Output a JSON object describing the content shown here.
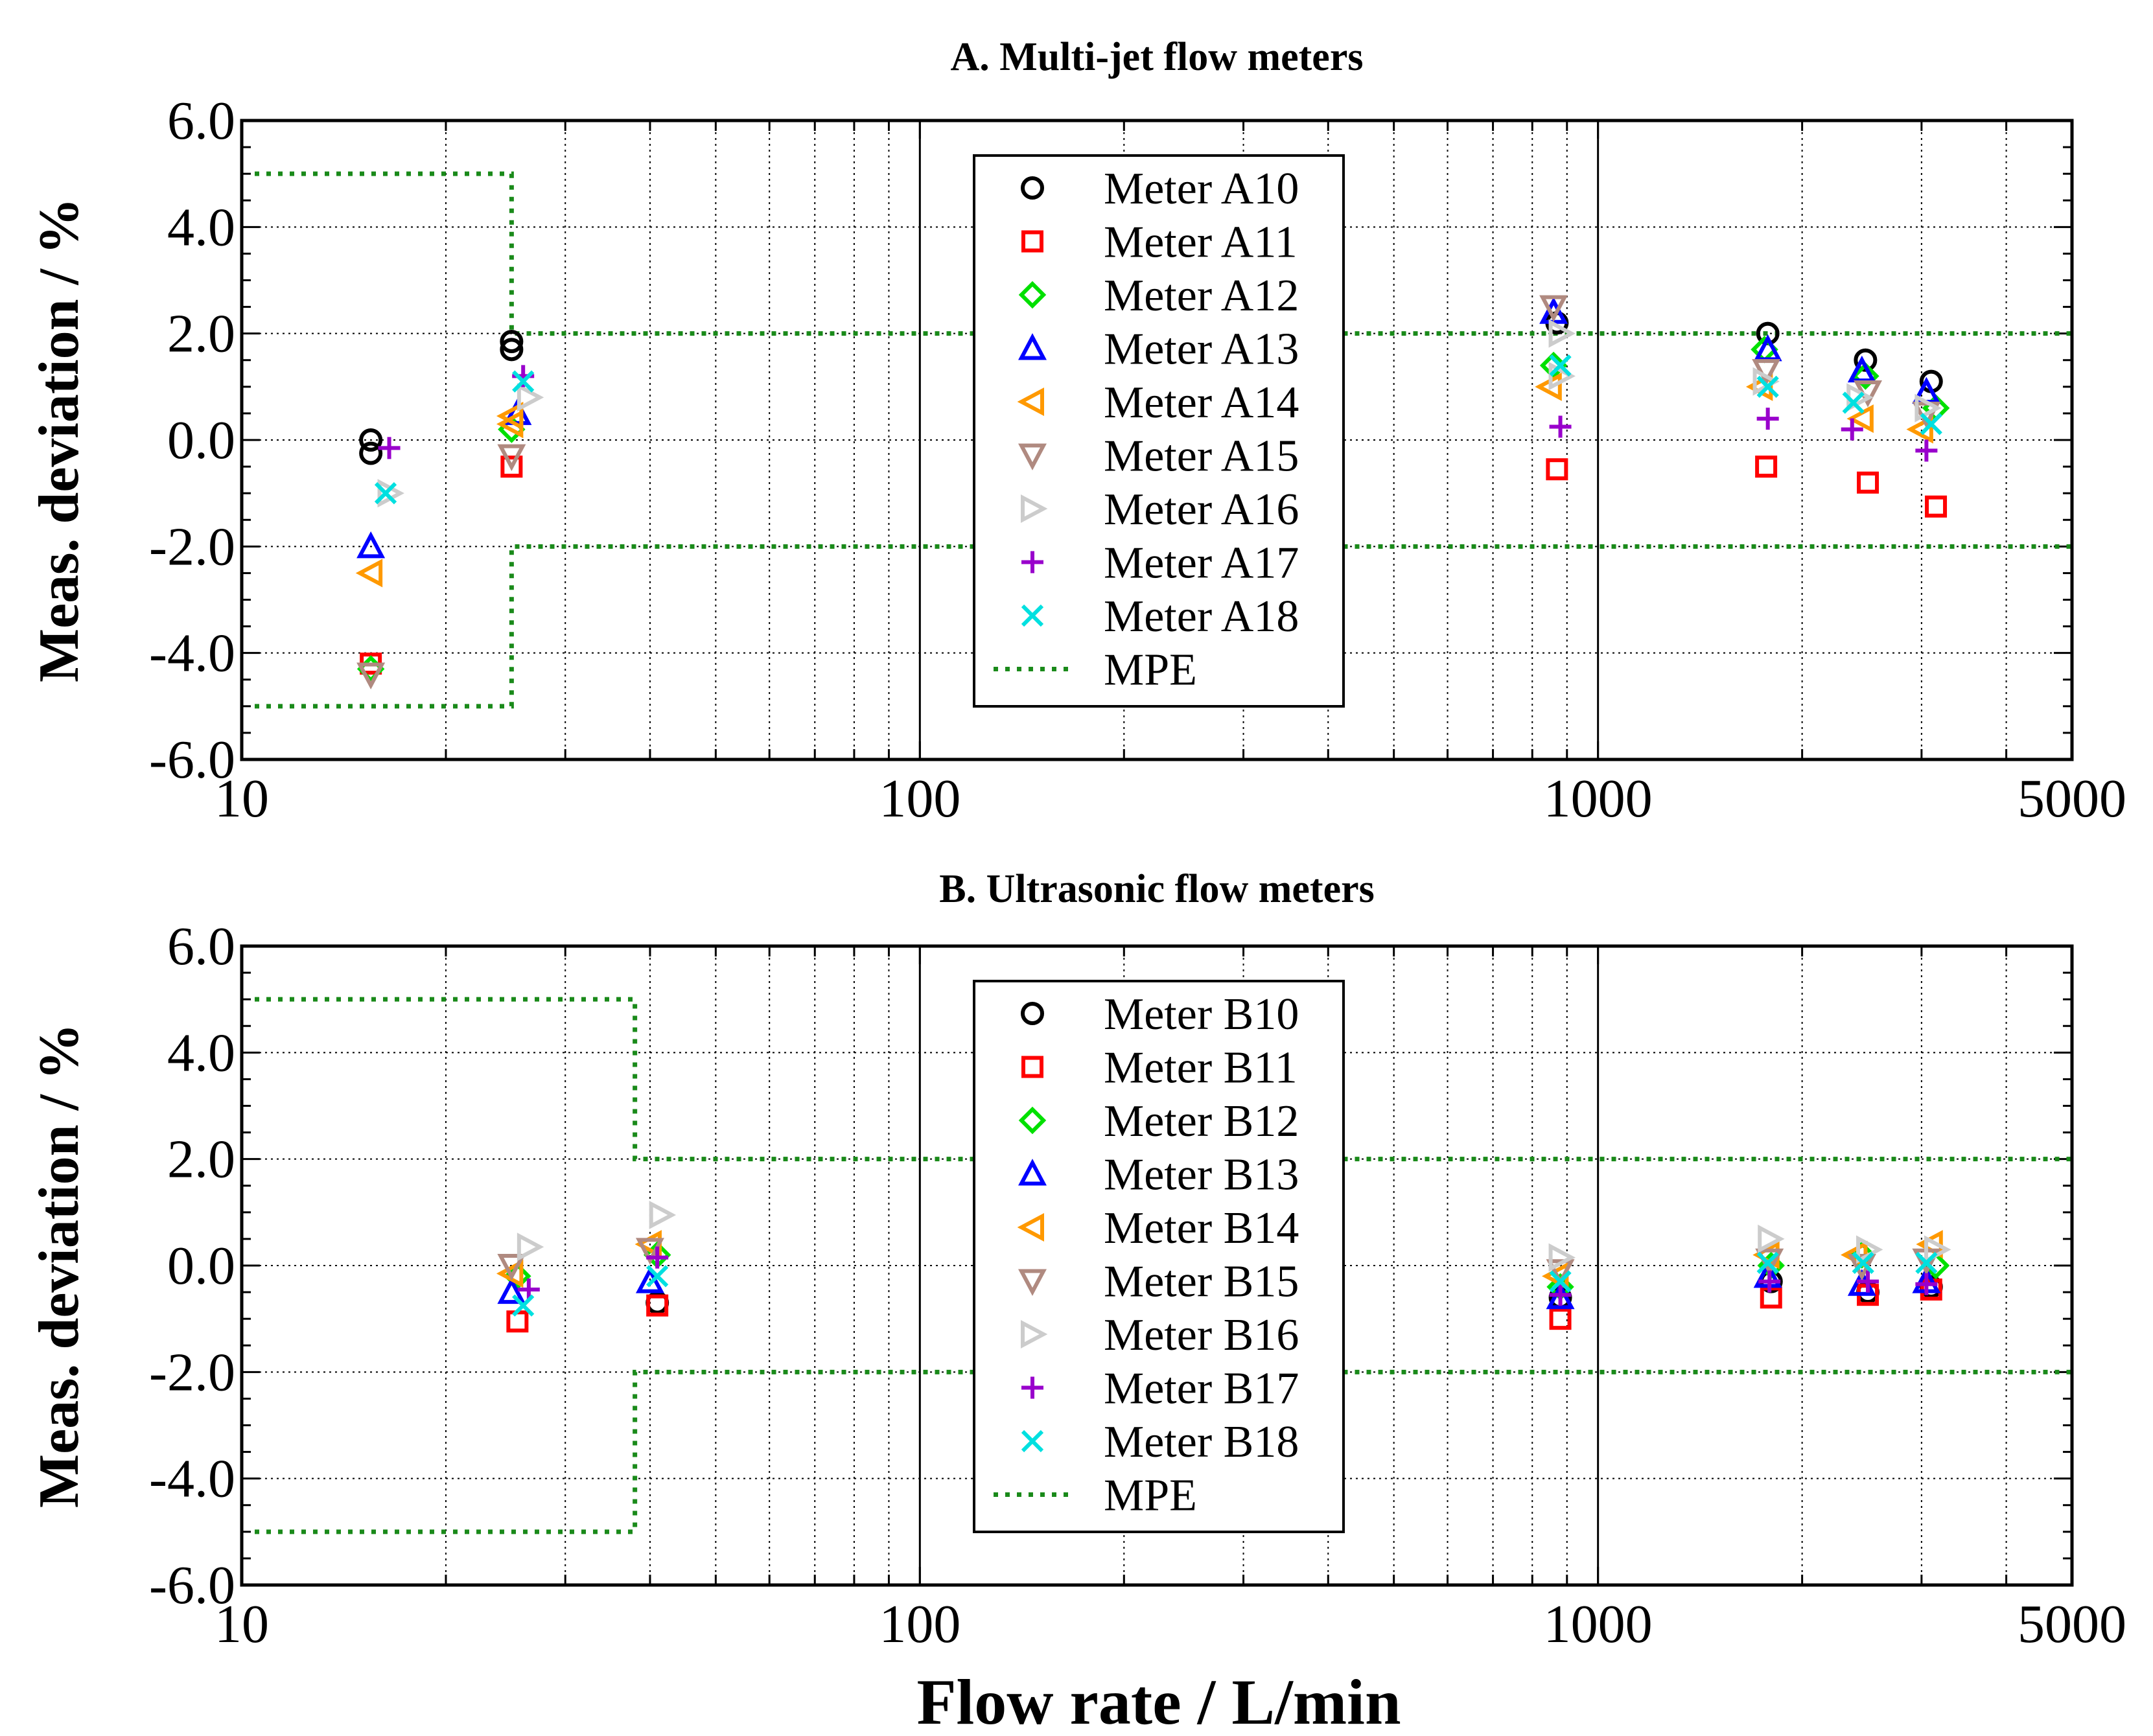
{
  "chart_data": [
    {
      "type": "scatter",
      "title": "A. Multi-jet flow meters",
      "ylabel": "Meas. deviation / %",
      "xlabel": "",
      "xscale": "log",
      "xlim": [
        10,
        5000
      ],
      "ylim": [
        -6.0,
        6.0
      ],
      "x_ticks": [
        "10",
        "100",
        "1000",
        "5000"
      ],
      "y_ticks": [
        "6.0",
        "4.0",
        "2.0",
        "0.0",
        "-2.0",
        "-4.0",
        "-6.0"
      ],
      "grid": true,
      "legend_position": "top-center",
      "mpe": {
        "name": "MPE",
        "color": "#1a8a1a",
        "transition_flow": 25,
        "low_limits": [
          -5.0,
          5.0
        ],
        "high_limits": [
          -2.0,
          2.0
        ]
      },
      "series": [
        {
          "name": "Meter A10",
          "marker": "circle",
          "color": "#000000",
          "points": [
            [
              15.5,
              0.0
            ],
            [
              15.5,
              -0.25
            ],
            [
              25,
              1.7
            ],
            [
              25,
              1.85
            ],
            [
              870,
              2.2
            ],
            [
              1780,
              2.0
            ],
            [
              2480,
              1.5
            ],
            [
              3100,
              1.1
            ]
          ]
        },
        {
          "name": "Meter A11",
          "marker": "square",
          "color": "#ff0000",
          "points": [
            [
              15.5,
              -4.2
            ],
            [
              25,
              -0.5
            ],
            [
              870,
              -0.55
            ],
            [
              1770,
              -0.5
            ],
            [
              2500,
              -0.8
            ],
            [
              3150,
              -1.25
            ]
          ]
        },
        {
          "name": "Meter A12",
          "marker": "diamond",
          "color": "#00e000",
          "points": [
            [
              15.5,
              -4.3
            ],
            [
              25,
              0.2
            ],
            [
              860,
              1.4
            ],
            [
              1760,
              1.7
            ],
            [
              2480,
              1.2
            ],
            [
              3150,
              0.6
            ]
          ]
        },
        {
          "name": "Meter A13",
          "marker": "triangle-up",
          "color": "#0000ff",
          "points": [
            [
              15.5,
              -2.0
            ],
            [
              25.5,
              0.5
            ],
            [
              860,
              2.4
            ],
            [
              1780,
              1.7
            ],
            [
              2450,
              1.3
            ],
            [
              3050,
              0.9
            ]
          ]
        },
        {
          "name": "Meter A14",
          "marker": "triangle-left",
          "color": "#ff9900",
          "points": [
            [
              15.5,
              -2.5
            ],
            [
              25,
              0.3
            ],
            [
              25,
              0.45
            ],
            [
              850,
              1.0
            ],
            [
              1740,
              1.0
            ],
            [
              2450,
              0.4
            ],
            [
              3000,
              0.2
            ]
          ]
        },
        {
          "name": "Meter A15",
          "marker": "triangle-down",
          "color": "#b08a80",
          "points": [
            [
              15.5,
              -4.4
            ],
            [
              25,
              -0.3
            ],
            [
              860,
              2.5
            ],
            [
              1770,
              1.3
            ],
            [
              2500,
              0.9
            ],
            [
              3050,
              0.5
            ]
          ]
        },
        {
          "name": "Meter A16",
          "marker": "triangle-right",
          "color": "#cccccc",
          "points": [
            [
              16.5,
              -1.0
            ],
            [
              26.5,
              0.8
            ],
            [
              880,
              2.0
            ],
            [
              880,
              1.2
            ],
            [
              1760,
              1.1
            ],
            [
              2420,
              0.8
            ],
            [
              3050,
              0.6
            ]
          ]
        },
        {
          "name": "Meter A17",
          "marker": "plus",
          "color": "#9900cc",
          "points": [
            [
              16.5,
              -0.15
            ],
            [
              26,
              1.2
            ],
            [
              880,
              0.25
            ],
            [
              1780,
              0.4
            ],
            [
              2370,
              0.2
            ],
            [
              3050,
              -0.2
            ]
          ]
        },
        {
          "name": "Meter A18",
          "marker": "x",
          "color": "#00e0e0",
          "points": [
            [
              16.3,
              -1.0
            ],
            [
              26,
              1.1
            ],
            [
              880,
              1.4
            ],
            [
              1780,
              1.0
            ],
            [
              2380,
              0.7
            ],
            [
              3100,
              0.3
            ]
          ]
        }
      ]
    },
    {
      "type": "scatter",
      "title": "B. Ultrasonic flow meters",
      "ylabel": "Meas. deviation / %",
      "xlabel": "Flow rate / L/min",
      "xscale": "log",
      "xlim": [
        10,
        5000
      ],
      "ylim": [
        -6.0,
        6.0
      ],
      "x_ticks": [
        "10",
        "100",
        "1000",
        "5000"
      ],
      "y_ticks": [
        "6.0",
        "4.0",
        "2.0",
        "0.0",
        "-2.0",
        "-4.0",
        "-6.0"
      ],
      "grid": true,
      "legend_position": "top-center",
      "mpe": {
        "name": "MPE",
        "color": "#1a8a1a",
        "transition_flow": 38,
        "low_limits": [
          -5.0,
          5.0
        ],
        "high_limits": [
          -2.0,
          2.0
        ]
      },
      "series": [
        {
          "name": "Meter B10",
          "marker": "circle",
          "color": "#000000",
          "points": [
            [
              41,
              -0.7
            ],
            [
              880,
              -0.6
            ],
            [
              1800,
              -0.3
            ],
            [
              2500,
              -0.5
            ],
            [
              3100,
              -0.4
            ]
          ]
        },
        {
          "name": "Meter B11",
          "marker": "square",
          "color": "#ff0000",
          "points": [
            [
              25.5,
              -1.05
            ],
            [
              41,
              -0.75
            ],
            [
              880,
              -1.0
            ],
            [
              1800,
              -0.6
            ],
            [
              2500,
              -0.55
            ],
            [
              3100,
              -0.45
            ]
          ]
        },
        {
          "name": "Meter B12",
          "marker": "diamond",
          "color": "#00e000",
          "points": [
            [
              25.5,
              -0.2
            ],
            [
              41,
              0.2
            ],
            [
              880,
              -0.4
            ],
            [
              1800,
              0.0
            ],
            [
              2450,
              0.2
            ],
            [
              3150,
              0.0
            ]
          ]
        },
        {
          "name": "Meter B13",
          "marker": "triangle-up",
          "color": "#0000ff",
          "points": [
            [
              25,
              -0.5
            ],
            [
              40,
              -0.3
            ],
            [
              880,
              -0.6
            ],
            [
              1780,
              -0.2
            ],
            [
              2450,
              -0.35
            ],
            [
              3050,
              -0.3
            ]
          ]
        },
        {
          "name": "Meter B14",
          "marker": "triangle-left",
          "color": "#ff9900",
          "points": [
            [
              25,
              -0.15
            ],
            [
              40,
              0.4
            ],
            [
              870,
              -0.2
            ],
            [
              1780,
              0.2
            ],
            [
              2400,
              0.2
            ],
            [
              3100,
              0.4
            ]
          ]
        },
        {
          "name": "Meter B15",
          "marker": "triangle-down",
          "color": "#b08a80",
          "points": [
            [
              25,
              0.0
            ],
            [
              40,
              0.3
            ],
            [
              880,
              -0.1
            ],
            [
              1790,
              0.1
            ],
            [
              2450,
              0.0
            ],
            [
              3050,
              0.1
            ]
          ]
        },
        {
          "name": "Meter B16",
          "marker": "triangle-right",
          "color": "#cccccc",
          "points": [
            [
              26.5,
              0.35
            ],
            [
              41.5,
              0.95
            ],
            [
              880,
              0.15
            ],
            [
              1790,
              0.5
            ],
            [
              2500,
              0.3
            ],
            [
              3150,
              0.3
            ]
          ]
        },
        {
          "name": "Meter B17",
          "marker": "plus",
          "color": "#9900cc",
          "points": [
            [
              26.5,
              -0.45
            ],
            [
              41,
              0.15
            ],
            [
              880,
              -0.55
            ],
            [
              1790,
              -0.3
            ],
            [
              2500,
              -0.3
            ],
            [
              3050,
              -0.35
            ]
          ]
        },
        {
          "name": "Meter B18",
          "marker": "x",
          "color": "#00e0e0",
          "points": [
            [
              26,
              -0.75
            ],
            [
              41,
              -0.2
            ],
            [
              880,
              -0.3
            ],
            [
              1780,
              0.05
            ],
            [
              2460,
              0.05
            ],
            [
              3050,
              0.05
            ]
          ]
        }
      ]
    }
  ]
}
